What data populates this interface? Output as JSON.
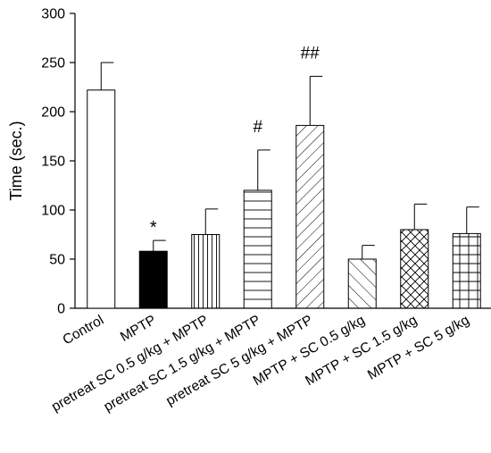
{
  "chart_data": {
    "type": "bar",
    "ylabel": "Time (sec.)",
    "ylim": [
      0,
      300
    ],
    "yticks": [
      0,
      50,
      100,
      150,
      200,
      250,
      300
    ],
    "categories": [
      "Control",
      "MPTP",
      "pretreat SC 0.5 g/kg + MPTP",
      "pretreat SC 1.5 g/kg + MPTP",
      "pretreat SC 5 g/kg + MPTP",
      "MPTP + SC 0.5 g/kg",
      "MPTP + SC 1.5 g/kg",
      "MPTP + SC 5 g/kg"
    ],
    "values": [
      222,
      58,
      75,
      120,
      186,
      50,
      80,
      76
    ],
    "errors": [
      28,
      11,
      26,
      41,
      50,
      14,
      26,
      27
    ],
    "fill_patterns": [
      "none",
      "solid",
      "vertical",
      "horizontal",
      "diagonal",
      "diagonal-wide",
      "crosshatch",
      "grid"
    ],
    "annotations": [
      "",
      "*",
      "",
      "#",
      "##",
      "",
      "",
      ""
    ],
    "grid": false,
    "legend": "none",
    "colors": {
      "bar_stroke": "#000000",
      "solid_fill": "#000000",
      "background": "#ffffff"
    }
  }
}
